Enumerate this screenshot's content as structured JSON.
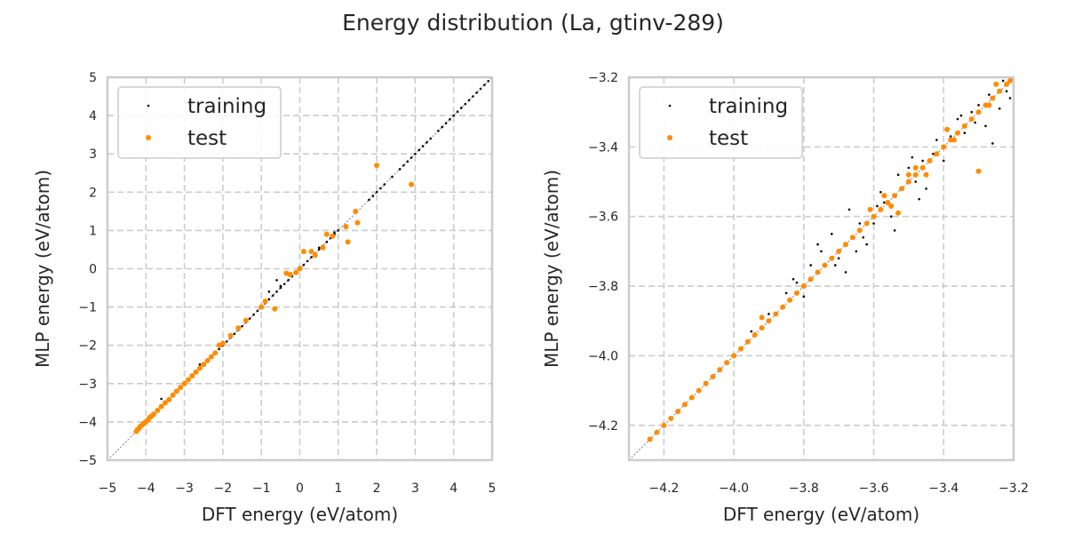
{
  "figure": {
    "title": "Energy distribution (La, gtinv-289)"
  },
  "colors": {
    "training": "#000000",
    "test": "#ff8c00",
    "grid": "#cccccc",
    "frame": "#cccccc",
    "diagonal": "#666666"
  },
  "chart_data": [
    {
      "type": "scatter",
      "xlabel": "DFT energy (eV/atom)",
      "ylabel": "MLP energy (eV/atom)",
      "xlim": [
        -5,
        5
      ],
      "ylim": [
        -5,
        5
      ],
      "xticks": [
        "−5",
        "−4",
        "−3",
        "−2",
        "−1",
        "0",
        "1",
        "2",
        "3",
        "4",
        "5"
      ],
      "yticks": [
        "−5",
        "−4",
        "−3",
        "−2",
        "−1",
        "0",
        "1",
        "2",
        "3",
        "4",
        "5"
      ],
      "grid": true,
      "legend": "top-left",
      "diagonal": true,
      "series": [
        {
          "name": "training",
          "points": [
            [
              -4.2,
              -4.2
            ],
            [
              -4.15,
              -4.14
            ],
            [
              -4.1,
              -4.1
            ],
            [
              -4.0,
              -3.98
            ],
            [
              -3.9,
              -3.9
            ],
            [
              -3.8,
              -3.8
            ],
            [
              -3.7,
              -3.7
            ],
            [
              -3.6,
              -3.62
            ],
            [
              -3.5,
              -3.5
            ],
            [
              -3.4,
              -3.4
            ],
            [
              -3.3,
              -3.3
            ],
            [
              -3.2,
              -3.22
            ],
            [
              -3.1,
              -3.1
            ],
            [
              -3.0,
              -3.0
            ],
            [
              -2.9,
              -2.9
            ],
            [
              -2.8,
              -2.8
            ],
            [
              -2.7,
              -2.7
            ],
            [
              -2.6,
              -2.6
            ],
            [
              -2.5,
              -2.5
            ],
            [
              -2.4,
              -2.4
            ],
            [
              -2.3,
              -2.3
            ],
            [
              -2.2,
              -2.2
            ],
            [
              -2.1,
              -2.1
            ],
            [
              -2.0,
              -2.0
            ],
            [
              -1.9,
              -1.9
            ],
            [
              -1.8,
              -1.8
            ],
            [
              -1.7,
              -1.7
            ],
            [
              -1.6,
              -1.6
            ],
            [
              -1.5,
              -1.5
            ],
            [
              -1.4,
              -1.4
            ],
            [
              -1.3,
              -1.3
            ],
            [
              -1.2,
              -1.2
            ],
            [
              -1.1,
              -1.1
            ],
            [
              -1.0,
              -1.0
            ],
            [
              -0.9,
              -0.9
            ],
            [
              -0.8,
              -0.8
            ],
            [
              -0.7,
              -0.7
            ],
            [
              -0.6,
              -0.6
            ],
            [
              -0.5,
              -0.5
            ],
            [
              -0.4,
              -0.4
            ],
            [
              -0.3,
              -0.3
            ],
            [
              -0.2,
              -0.2
            ],
            [
              -0.1,
              -0.1
            ],
            [
              0.0,
              0.0
            ],
            [
              0.1,
              0.1
            ],
            [
              0.2,
              0.2
            ],
            [
              0.3,
              0.3
            ],
            [
              0.4,
              0.4
            ],
            [
              0.5,
              0.5
            ],
            [
              0.6,
              0.6
            ],
            [
              0.7,
              0.7
            ],
            [
              0.8,
              0.8
            ],
            [
              0.9,
              0.9
            ],
            [
              1.0,
              1.0
            ],
            [
              1.8,
              1.8
            ],
            [
              1.9,
              1.9
            ],
            [
              2.0,
              2.0
            ],
            [
              2.1,
              2.1
            ],
            [
              2.2,
              2.2
            ],
            [
              2.4,
              2.4
            ],
            [
              2.6,
              2.6
            ],
            [
              2.7,
              2.7
            ],
            [
              2.8,
              2.8
            ],
            [
              2.9,
              2.9
            ],
            [
              3.0,
              3.0
            ],
            [
              3.1,
              3.1
            ],
            [
              3.2,
              3.2
            ],
            [
              3.3,
              3.3
            ],
            [
              3.4,
              3.4
            ],
            [
              3.6,
              3.6
            ],
            [
              3.7,
              3.7
            ],
            [
              3.8,
              3.8
            ],
            [
              3.9,
              3.9
            ],
            [
              4.0,
              4.0
            ],
            [
              4.1,
              4.1
            ],
            [
              4.2,
              4.2
            ],
            [
              4.3,
              4.3
            ],
            [
              4.4,
              4.4
            ],
            [
              4.5,
              4.5
            ],
            [
              4.6,
              4.6
            ],
            [
              4.7,
              4.7
            ],
            [
              4.8,
              4.8
            ],
            [
              4.9,
              4.9
            ],
            [
              -3.6,
              -3.4
            ],
            [
              -2.6,
              -2.5
            ],
            [
              -0.8,
              -0.6
            ],
            [
              -0.5,
              -0.45
            ],
            [
              -0.6,
              -0.3
            ],
            [
              0.5,
              0.55
            ],
            [
              0.9,
              0.95
            ]
          ]
        },
        {
          "name": "test",
          "points": [
            [
              -4.25,
              -4.25
            ],
            [
              -4.22,
              -4.2
            ],
            [
              -4.18,
              -4.17
            ],
            [
              -4.15,
              -4.12
            ],
            [
              -4.1,
              -4.08
            ],
            [
              -4.05,
              -4.04
            ],
            [
              -4.0,
              -4.0
            ],
            [
              -3.95,
              -3.95
            ],
            [
              -3.9,
              -3.88
            ],
            [
              -3.85,
              -3.85
            ],
            [
              -3.8,
              -3.8
            ],
            [
              -3.7,
              -3.7
            ],
            [
              -3.6,
              -3.6
            ],
            [
              -3.5,
              -3.5
            ],
            [
              -3.4,
              -3.42
            ],
            [
              -3.3,
              -3.3
            ],
            [
              -3.2,
              -3.2
            ],
            [
              -3.1,
              -3.1
            ],
            [
              -3.0,
              -3.0
            ],
            [
              -2.9,
              -2.9
            ],
            [
              -2.8,
              -2.8
            ],
            [
              -2.7,
              -2.7
            ],
            [
              -2.6,
              -2.6
            ],
            [
              -2.5,
              -2.5
            ],
            [
              -2.4,
              -2.4
            ],
            [
              -2.3,
              -2.3
            ],
            [
              -2.2,
              -2.2
            ],
            [
              -2.1,
              -2.0
            ],
            [
              -2.0,
              -1.95
            ],
            [
              -1.8,
              -1.75
            ],
            [
              -1.6,
              -1.55
            ],
            [
              -1.4,
              -1.35
            ],
            [
              -1.0,
              -1.0
            ],
            [
              -0.9,
              -0.85
            ],
            [
              -0.65,
              -1.05
            ],
            [
              -0.35,
              -0.12
            ],
            [
              -0.25,
              -0.15
            ],
            [
              -0.1,
              -0.1
            ],
            [
              0.0,
              0.0
            ],
            [
              0.1,
              0.45
            ],
            [
              0.3,
              0.45
            ],
            [
              0.4,
              0.35
            ],
            [
              0.6,
              0.55
            ],
            [
              0.7,
              0.9
            ],
            [
              0.85,
              0.85
            ],
            [
              1.2,
              1.1
            ],
            [
              1.25,
              0.7
            ],
            [
              1.45,
              1.5
            ],
            [
              1.5,
              1.2
            ],
            [
              2.0,
              2.7
            ],
            [
              2.9,
              2.2
            ]
          ]
        }
      ]
    },
    {
      "type": "scatter",
      "xlabel": "DFT energy (eV/atom)",
      "ylabel": "MLP energy (eV/atom)",
      "xlim": [
        -4.3,
        -3.2
      ],
      "ylim": [
        -4.3,
        -3.2
      ],
      "xticks": [
        "−4.2",
        "−4.0",
        "−3.8",
        "−3.6",
        "−3.4",
        "−3.2"
      ],
      "yticks": [
        "−4.2",
        "−4.0",
        "−3.8",
        "−3.6",
        "−3.4",
        "−3.2"
      ],
      "grid": true,
      "legend": "top-left",
      "diagonal": true,
      "series": [
        {
          "name": "training",
          "points": [
            [
              -3.95,
              -3.93
            ],
            [
              -3.85,
              -3.82
            ],
            [
              -3.83,
              -3.78
            ],
            [
              -3.78,
              -3.74
            ],
            [
              -3.75,
              -3.7
            ],
            [
              -3.72,
              -3.65
            ],
            [
              -3.7,
              -3.72
            ],
            [
              -3.68,
              -3.76
            ],
            [
              -3.65,
              -3.7
            ],
            [
              -3.62,
              -3.68
            ],
            [
              -3.6,
              -3.62
            ],
            [
              -3.59,
              -3.57
            ],
            [
              -3.57,
              -3.56
            ],
            [
              -3.55,
              -3.6
            ],
            [
              -3.54,
              -3.64
            ],
            [
              -3.52,
              -3.52
            ],
            [
              -3.5,
              -3.46
            ],
            [
              -3.48,
              -3.5
            ],
            [
              -3.46,
              -3.44
            ],
            [
              -3.45,
              -3.52
            ],
            [
              -3.43,
              -3.42
            ],
            [
              -3.42,
              -3.38
            ],
            [
              -3.4,
              -3.44
            ],
            [
              -3.38,
              -3.37
            ],
            [
              -3.36,
              -3.32
            ],
            [
              -3.34,
              -3.36
            ],
            [
              -3.32,
              -3.3
            ],
            [
              -3.3,
              -3.28
            ],
            [
              -3.28,
              -3.34
            ],
            [
              -3.27,
              -3.25
            ],
            [
              -3.25,
              -3.22
            ],
            [
              -3.24,
              -3.29
            ],
            [
              -3.23,
              -3.21
            ],
            [
              -3.22,
              -3.24
            ],
            [
              -3.26,
              -3.39
            ],
            [
              -3.21,
              -3.26
            ],
            [
              -3.8,
              -3.83
            ],
            [
              -3.9,
              -3.88
            ],
            [
              -3.76,
              -3.68
            ],
            [
              -3.67,
              -3.58
            ],
            [
              -3.64,
              -3.62
            ],
            [
              -3.53,
              -3.48
            ],
            [
              -3.35,
              -3.31
            ],
            [
              -3.31,
              -3.33
            ],
            [
              -3.58,
              -3.53
            ],
            [
              -3.49,
              -3.43
            ],
            [
              -3.82,
              -3.79
            ],
            [
              -3.71,
              -3.74
            ],
            [
              -3.63,
              -3.66
            ],
            [
              -3.47,
              -3.55
            ]
          ]
        },
        {
          "name": "test",
          "points": [
            [
              -4.24,
              -4.24
            ],
            [
              -4.22,
              -4.22
            ],
            [
              -4.2,
              -4.2
            ],
            [
              -4.18,
              -4.18
            ],
            [
              -4.16,
              -4.16
            ],
            [
              -4.14,
              -4.14
            ],
            [
              -4.12,
              -4.12
            ],
            [
              -4.1,
              -4.1
            ],
            [
              -4.08,
              -4.08
            ],
            [
              -4.06,
              -4.06
            ],
            [
              -4.04,
              -4.04
            ],
            [
              -4.02,
              -4.02
            ],
            [
              -4.0,
              -4.0
            ],
            [
              -3.98,
              -3.98
            ],
            [
              -3.96,
              -3.96
            ],
            [
              -3.94,
              -3.94
            ],
            [
              -3.92,
              -3.92
            ],
            [
              -3.9,
              -3.9
            ],
            [
              -3.88,
              -3.88
            ],
            [
              -3.86,
              -3.86
            ],
            [
              -3.84,
              -3.84
            ],
            [
              -3.82,
              -3.82
            ],
            [
              -3.8,
              -3.8
            ],
            [
              -3.78,
              -3.78
            ],
            [
              -3.76,
              -3.76
            ],
            [
              -3.74,
              -3.74
            ],
            [
              -3.72,
              -3.72
            ],
            [
              -3.7,
              -3.7
            ],
            [
              -3.68,
              -3.68
            ],
            [
              -3.66,
              -3.66
            ],
            [
              -3.64,
              -3.64
            ],
            [
              -3.62,
              -3.62
            ],
            [
              -3.6,
              -3.6
            ],
            [
              -3.58,
              -3.58
            ],
            [
              -3.56,
              -3.56
            ],
            [
              -3.54,
              -3.54
            ],
            [
              -3.52,
              -3.52
            ],
            [
              -3.5,
              -3.5
            ],
            [
              -3.48,
              -3.48
            ],
            [
              -3.46,
              -3.46
            ],
            [
              -3.44,
              -3.44
            ],
            [
              -3.42,
              -3.42
            ],
            [
              -3.4,
              -3.4
            ],
            [
              -3.38,
              -3.38
            ],
            [
              -3.36,
              -3.36
            ],
            [
              -3.34,
              -3.34
            ],
            [
              -3.32,
              -3.32
            ],
            [
              -3.3,
              -3.3
            ],
            [
              -3.28,
              -3.28
            ],
            [
              -3.26,
              -3.26
            ],
            [
              -3.24,
              -3.24
            ],
            [
              -3.22,
              -3.22
            ],
            [
              -3.21,
              -3.21
            ],
            [
              -3.92,
              -3.89
            ],
            [
              -3.61,
              -3.58
            ],
            [
              -3.55,
              -3.57
            ],
            [
              -3.53,
              -3.59
            ],
            [
              -3.5,
              -3.48
            ],
            [
              -3.48,
              -3.46
            ],
            [
              -3.45,
              -3.48
            ],
            [
              -3.39,
              -3.35
            ],
            [
              -3.37,
              -3.38
            ],
            [
              -3.3,
              -3.47
            ],
            [
              -3.25,
              -3.22
            ],
            [
              -3.27,
              -3.28
            ],
            [
              -3.57,
              -3.54
            ]
          ]
        }
      ]
    }
  ]
}
